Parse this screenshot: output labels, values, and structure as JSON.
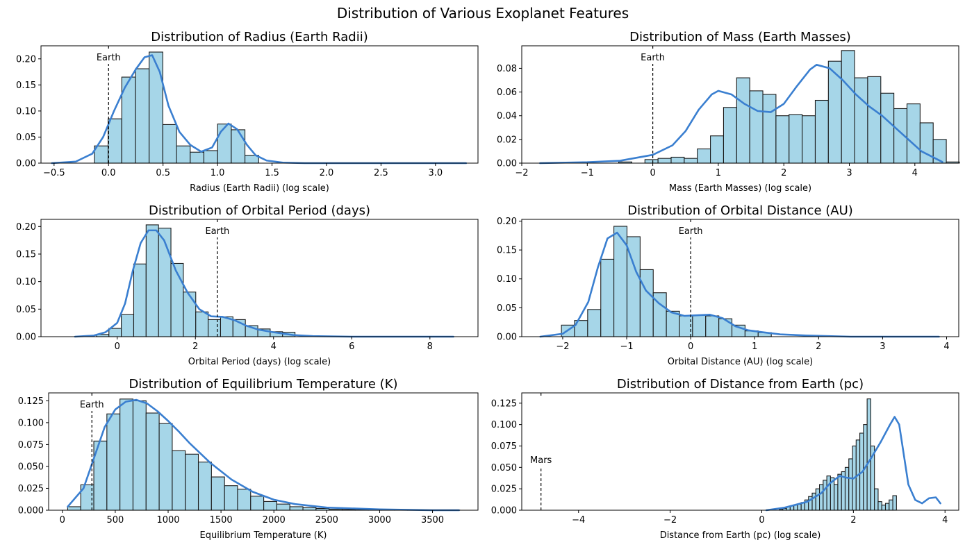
{
  "figure": {
    "suptitle": "Distribution of Various Exoplanet Features",
    "colors": {
      "bar_fill": "#a6d6e8",
      "bar_edge": "#1a1a1a",
      "kde": "#3a7fd0",
      "ref_line": "#000000"
    }
  },
  "chart_data": [
    {
      "type": "bar",
      "title": "Distribution of Radius (Earth Radii)",
      "xlabel": "Radius (Earth Radii) (log scale)",
      "ylabel": "",
      "xlim": [
        -0.62,
        3.39
      ],
      "ylim": [
        0,
        0.225
      ],
      "xticks": [
        -0.5,
        0.0,
        0.5,
        1.0,
        1.5,
        2.0,
        2.5,
        3.0
      ],
      "xtick_labels": [
        "−0.5",
        "0.0",
        "0.5",
        "1.0",
        "1.5",
        "2.0",
        "2.5",
        "3.0"
      ],
      "yticks": [
        0,
        0.05,
        0.1,
        0.15,
        0.2
      ],
      "ytick_labels": [
        "0.00",
        "0.05",
        "0.10",
        "0.15",
        "0.20"
      ],
      "bins": {
        "start": -0.13,
        "width": 0.1256,
        "values": [
          0.033,
          0.085,
          0.165,
          0.181,
          0.213,
          0.074,
          0.033,
          0.021,
          0.024,
          0.075,
          0.064,
          0.015
        ]
      },
      "kde": {
        "x": [
          -0.52,
          -0.3,
          -0.15,
          -0.05,
          0.05,
          0.15,
          0.25,
          0.33,
          0.4,
          0.47,
          0.55,
          0.65,
          0.75,
          0.85,
          0.95,
          1.03,
          1.1,
          1.18,
          1.27,
          1.35,
          1.45,
          1.6,
          1.8,
          3.28
        ],
        "y": [
          0.0,
          0.003,
          0.018,
          0.05,
          0.1,
          0.145,
          0.18,
          0.203,
          0.207,
          0.175,
          0.11,
          0.06,
          0.035,
          0.022,
          0.03,
          0.06,
          0.076,
          0.065,
          0.035,
          0.015,
          0.005,
          0.001,
          0.0,
          0.0
        ]
      },
      "ref": {
        "label": "Earth",
        "x": 0.0
      }
    },
    {
      "type": "bar",
      "title": "Distribution of Mass (Earth Masses)",
      "xlabel": "Mass (Earth Masses) (log scale)",
      "ylabel": "",
      "xlim": [
        -2.0,
        4.67
      ],
      "ylim": [
        0,
        0.099
      ],
      "xticks": [
        -2,
        -1,
        0,
        1,
        2,
        3,
        4
      ],
      "xtick_labels": [
        "−2",
        "−1",
        "0",
        "1",
        "2",
        "3",
        "4"
      ],
      "yticks": [
        0,
        0.02,
        0.04,
        0.06,
        0.08
      ],
      "ytick_labels": [
        "0.00",
        "0.02",
        "0.04",
        "0.06",
        "0.08"
      ],
      "bins": {
        "start": -1.72,
        "width": 0.2,
        "values": [
          0.0,
          0.0,
          0.0,
          0.0,
          0.0,
          0.0,
          0.001,
          0.0,
          0.003,
          0.004,
          0.005,
          0.004,
          0.012,
          0.023,
          0.047,
          0.072,
          0.061,
          0.058,
          0.04,
          0.041,
          0.04,
          0.053,
          0.086,
          0.095,
          0.072,
          0.073,
          0.059,
          0.046,
          0.05,
          0.034,
          0.02,
          0.001
        ]
      },
      "kde": {
        "x": [
          -1.72,
          -1.0,
          -0.5,
          0.0,
          0.3,
          0.5,
          0.7,
          0.9,
          1.0,
          1.2,
          1.4,
          1.6,
          1.8,
          2.0,
          2.2,
          2.4,
          2.5,
          2.7,
          2.9,
          3.1,
          3.3,
          3.5,
          3.7,
          3.9,
          4.1,
          4.42
        ],
        "y": [
          0.0,
          0.0008,
          0.002,
          0.007,
          0.015,
          0.027,
          0.045,
          0.058,
          0.061,
          0.058,
          0.05,
          0.044,
          0.043,
          0.05,
          0.065,
          0.079,
          0.083,
          0.08,
          0.07,
          0.058,
          0.048,
          0.04,
          0.03,
          0.02,
          0.01,
          0.001
        ]
      },
      "ref": {
        "label": "Earth",
        "x": 0.0
      }
    },
    {
      "type": "bar",
      "title": "Distribution of Orbital Period (days)",
      "xlabel": "Orbital Period (days) (log scale)",
      "ylabel": "",
      "xlim": [
        -1.95,
        9.23
      ],
      "ylim": [
        0,
        0.213
      ],
      "xticks": [
        0,
        2,
        4,
        6,
        8
      ],
      "xtick_labels": [
        "0",
        "2",
        "4",
        "6",
        "8"
      ],
      "yticks": [
        0,
        0.05,
        0.1,
        0.15,
        0.2
      ],
      "ytick_labels": [
        "0.00",
        "0.05",
        "0.10",
        "0.15",
        "0.20"
      ],
      "bins": {
        "start": -0.53,
        "width": 0.3174,
        "values": [
          0.004,
          0.015,
          0.04,
          0.132,
          0.203,
          0.197,
          0.133,
          0.081,
          0.045,
          0.031,
          0.036,
          0.031,
          0.02,
          0.014,
          0.009,
          0.008
        ]
      },
      "kde": {
        "x": [
          -1.08,
          -0.6,
          -0.3,
          0.0,
          0.2,
          0.4,
          0.6,
          0.8,
          1.0,
          1.2,
          1.5,
          1.8,
          2.1,
          2.4,
          2.7,
          3.0,
          3.3,
          3.6,
          4.0,
          4.5,
          5.0,
          6.0,
          8.6
        ],
        "y": [
          0.0,
          0.002,
          0.008,
          0.025,
          0.06,
          0.12,
          0.17,
          0.193,
          0.193,
          0.175,
          0.12,
          0.08,
          0.05,
          0.037,
          0.036,
          0.03,
          0.02,
          0.013,
          0.008,
          0.003,
          0.001,
          0.0,
          0.0
        ]
      },
      "ref": {
        "label": "Earth",
        "x": 2.5625
      }
    },
    {
      "type": "bar",
      "title": "Distribution of Orbital Distance (AU)",
      "xlabel": "Orbital Distance (AU) (log scale)",
      "ylabel": "",
      "xlim": [
        -2.64,
        4.19
      ],
      "ylim": [
        0,
        0.203
      ],
      "xticks": [
        -2,
        -1,
        0,
        1,
        2,
        3,
        4
      ],
      "xtick_labels": [
        "−2",
        "−1",
        "0",
        "1",
        "2",
        "3",
        "4"
      ],
      "yticks": [
        0,
        0.05,
        0.1,
        0.15,
        0.2
      ],
      "ytick_labels": [
        "0.00",
        "0.05",
        "0.10",
        "0.15",
        "0.20"
      ],
      "bins": {
        "start": -2.02,
        "width": 0.205,
        "values": [
          0.02,
          0.028,
          0.047,
          0.134,
          0.191,
          0.173,
          0.116,
          0.076,
          0.044,
          0.036,
          0.037,
          0.036,
          0.031,
          0.02,
          0.01,
          0.007
        ]
      },
      "kde": {
        "x": [
          -2.35,
          -2.0,
          -1.8,
          -1.6,
          -1.45,
          -1.3,
          -1.15,
          -1.0,
          -0.85,
          -0.7,
          -0.5,
          -0.3,
          -0.1,
          0.1,
          0.3,
          0.5,
          0.7,
          0.9,
          1.1,
          1.4,
          1.8,
          2.5,
          3.88
        ],
        "y": [
          0.0,
          0.005,
          0.02,
          0.06,
          0.12,
          0.17,
          0.18,
          0.158,
          0.112,
          0.08,
          0.058,
          0.042,
          0.036,
          0.037,
          0.038,
          0.032,
          0.018,
          0.011,
          0.008,
          0.004,
          0.002,
          0.0,
          0.0
        ]
      },
      "ref": {
        "label": "Earth",
        "x": 0.0
      }
    },
    {
      "type": "bar",
      "title": "Distribution of Equilibrium Temperature (K)",
      "xlabel": "Equilibrium Temperature (K)",
      "ylabel": "",
      "xlim": [
        -130,
        3930
      ],
      "ylim": [
        0,
        0.134
      ],
      "xticks": [
        0,
        500,
        1000,
        1500,
        2000,
        2500,
        3000,
        3500
      ],
      "xtick_labels": [
        "0",
        "500",
        "1000",
        "1500",
        "2000",
        "2500",
        "3000",
        "3500"
      ],
      "yticks": [
        0,
        0.025,
        0.05,
        0.075,
        0.1,
        0.125
      ],
      "ytick_labels": [
        "0.000",
        "0.025",
        "0.050",
        "0.075",
        "0.100",
        "0.125"
      ],
      "bins": {
        "start": 50,
        "width": 123.6,
        "values": [
          0.004,
          0.029,
          0.079,
          0.11,
          0.127,
          0.125,
          0.111,
          0.099,
          0.068,
          0.064,
          0.055,
          0.038,
          0.028,
          0.024,
          0.016,
          0.01,
          0.007,
          0.004,
          0.003,
          0.002,
          0.0012,
          0.0008,
          0.0005,
          0.0004,
          0.0003,
          0.0002,
          0.0002,
          0.0001,
          0.0001,
          0.0001
        ]
      },
      "kde": {
        "x": [
          50,
          200,
          300,
          400,
          500,
          600,
          700,
          800,
          900,
          1000,
          1100,
          1200,
          1400,
          1600,
          1800,
          2000,
          2200,
          2500,
          3000,
          3500,
          3750
        ],
        "y": [
          0.004,
          0.025,
          0.06,
          0.095,
          0.115,
          0.124,
          0.126,
          0.122,
          0.113,
          0.102,
          0.09,
          0.077,
          0.054,
          0.035,
          0.021,
          0.012,
          0.007,
          0.003,
          0.001,
          0.0,
          0.0
        ]
      },
      "ref": {
        "label": "Earth",
        "x": 279
      }
    },
    {
      "type": "bar",
      "title": "Distribution of Distance from Earth (pc)",
      "xlabel": "Distance from Earth (pc) (log scale)",
      "ylabel": "",
      "xlim": [
        -5.24,
        4.3
      ],
      "ylim": [
        0,
        0.137
      ],
      "xticks": [
        -4,
        -2,
        0,
        2,
        4
      ],
      "xtick_labels": [
        "−4",
        "−2",
        "0",
        "2",
        "4"
      ],
      "yticks": [
        0,
        0.025,
        0.05,
        0.075,
        0.1,
        0.125
      ],
      "ytick_labels": [
        "0.000",
        "0.025",
        "0.050",
        "0.075",
        "0.100",
        "0.125"
      ],
      "bins": {
        "start": 0.38,
        "width": 0.08,
        "values": [
          0.001,
          0.002,
          0.004,
          0.005,
          0.006,
          0.007,
          0.009,
          0.012,
          0.016,
          0.02,
          0.025,
          0.03,
          0.035,
          0.04,
          0.038,
          0.03,
          0.042,
          0.045,
          0.05,
          0.06,
          0.075,
          0.082,
          0.09,
          0.1,
          0.13,
          0.075,
          0.025,
          0.01,
          0.006,
          0.008,
          0.012,
          0.017
        ]
      },
      "kde": {
        "x": [
          0.1,
          0.5,
          1.0,
          1.3,
          1.5,
          1.7,
          1.85,
          2.0,
          2.2,
          2.4,
          2.6,
          2.8,
          2.9,
          3.0,
          3.1,
          3.2,
          3.35,
          3.5,
          3.65,
          3.8,
          3.9
        ],
        "y": [
          0.0,
          0.003,
          0.01,
          0.02,
          0.032,
          0.04,
          0.038,
          0.037,
          0.045,
          0.062,
          0.08,
          0.1,
          0.109,
          0.1,
          0.065,
          0.03,
          0.012,
          0.008,
          0.014,
          0.015,
          0.008
        ]
      },
      "ref": {
        "label": "Mars",
        "x": -4.82
      }
    }
  ]
}
